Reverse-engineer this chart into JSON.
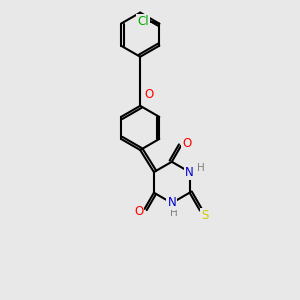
{
  "bg_color": "#e8e8e8",
  "bond_color": "#000000",
  "bond_width": 1.5,
  "dbo": 0.05,
  "atom_colors": {
    "O": "#ff0000",
    "N": "#0000cd",
    "S": "#cccc00",
    "Cl": "#00aa00",
    "C": "#000000",
    "H": "#808080"
  },
  "font_size": 8.5,
  "fig_size": [
    3.0,
    3.0
  ],
  "dpi": 100,
  "xlim": [
    -1.5,
    2.5
  ],
  "ylim": [
    -2.8,
    3.2
  ]
}
